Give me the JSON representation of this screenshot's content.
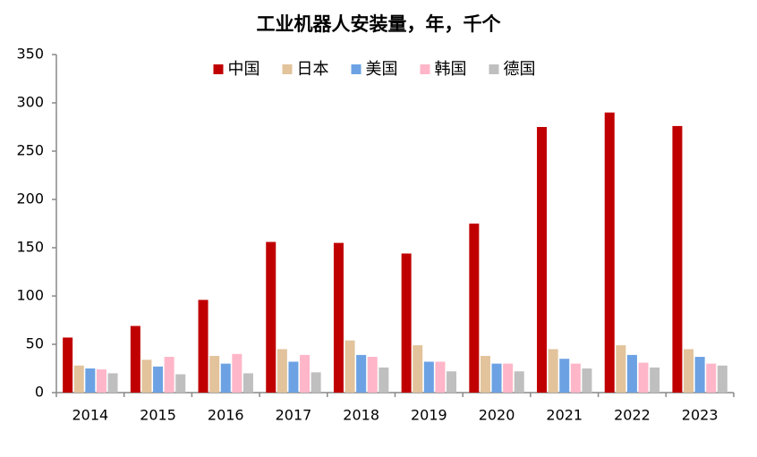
{
  "chart_data": {
    "type": "bar",
    "title": "工业机器人安装量，年，千个",
    "categories": [
      "2014",
      "2015",
      "2016",
      "2017",
      "2018",
      "2019",
      "2020",
      "2021",
      "2022",
      "2023"
    ],
    "series": [
      {
        "name": "中国",
        "color": "#c00000",
        "values": [
          57,
          69,
          96,
          156,
          155,
          144,
          175,
          275,
          290,
          276
        ]
      },
      {
        "name": "日本",
        "color": "#e2c39b",
        "values": [
          28,
          34,
          38,
          45,
          54,
          49,
          38,
          45,
          49,
          45
        ]
      },
      {
        "name": "美国",
        "color": "#6ca2e3",
        "values": [
          25,
          27,
          30,
          32,
          39,
          32,
          30,
          35,
          39,
          37
        ]
      },
      {
        "name": "韩国",
        "color": "#ffb6c8",
        "values": [
          24,
          37,
          40,
          39,
          37,
          32,
          30,
          30,
          31,
          30
        ]
      },
      {
        "name": "德国",
        "color": "#bfbfbf",
        "values": [
          20,
          19,
          20,
          21,
          26,
          22,
          22,
          25,
          26,
          28
        ]
      }
    ],
    "ylim": [
      0,
      350
    ],
    "yticks": [
      0,
      50,
      100,
      150,
      200,
      250,
      300,
      350
    ],
    "legend": "top"
  }
}
